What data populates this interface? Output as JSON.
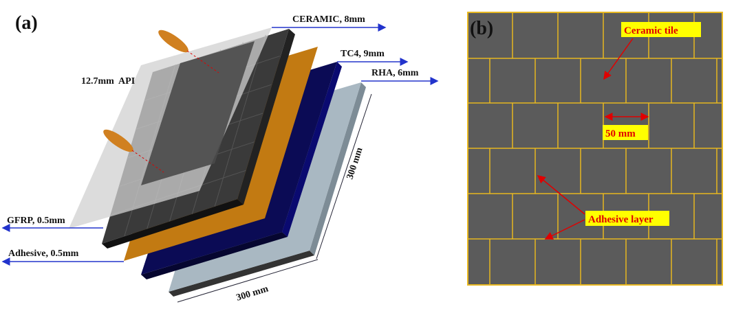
{
  "panel_a": {
    "label": "(a)",
    "api": "12.7mm  API",
    "ceramic": "CERAMIC, 8mm",
    "tc4": "TC4, 9mm",
    "rha": "RHA, 6mm",
    "gfrp": "GFRP, 0.5mm",
    "adhesive": "Adhesive, 0.5mm",
    "height": "300 mm",
    "width": "300 mm"
  },
  "panel_b": {
    "label": "(b)",
    "tile": "Ceramic tile",
    "size": "50 mm",
    "adhesive": "Adhesive layer"
  }
}
